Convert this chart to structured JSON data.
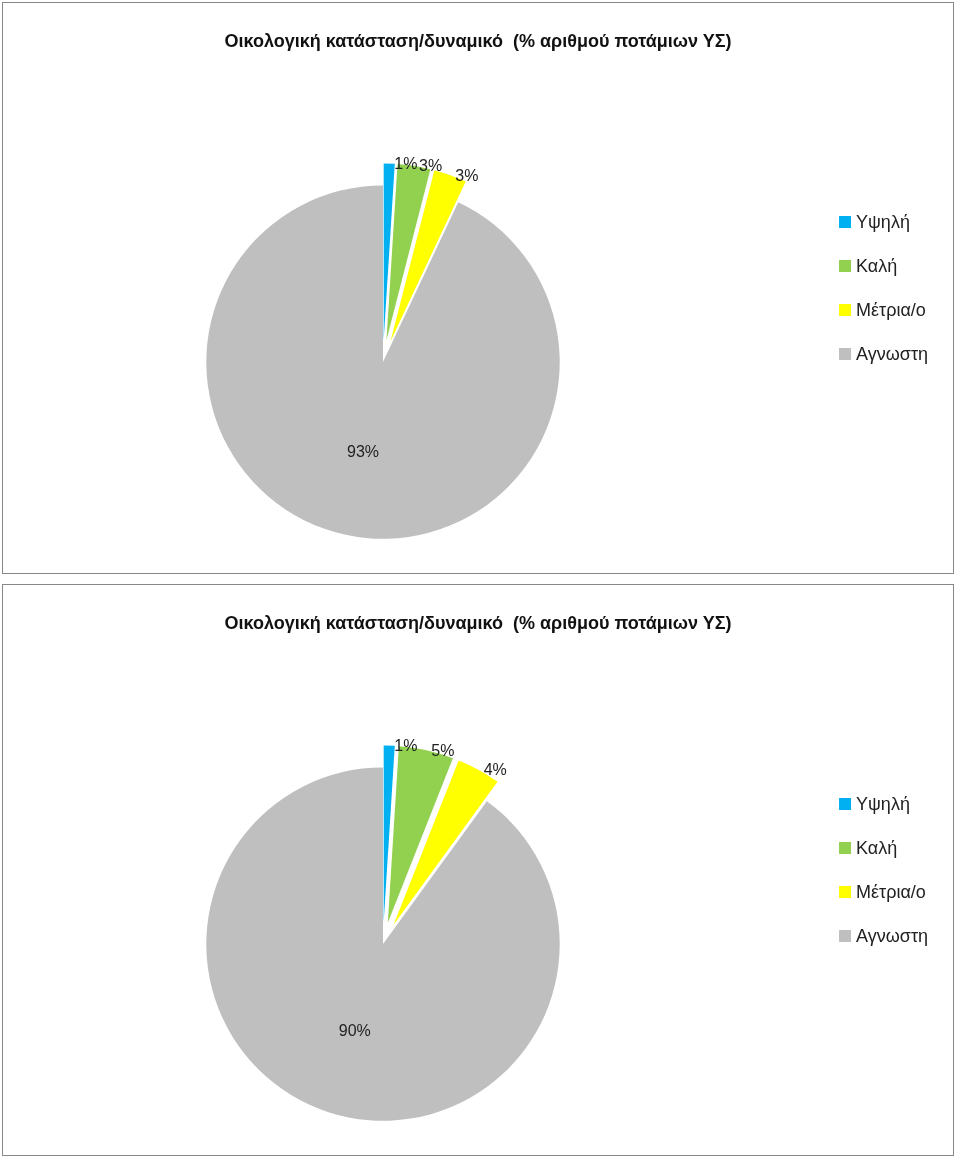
{
  "chart_data": [
    {
      "type": "pie",
      "title": "Οικολογική κατάσταση/δυναμικό  (% αριθμού ποτάμιων ΥΣ)",
      "categories": [
        "Υψηλή",
        "Καλή",
        "Μέτρια/ο",
        "Αγνωστη"
      ],
      "values": [
        1,
        3,
        3,
        93
      ],
      "colors": [
        "#00b0f0",
        "#92d050",
        "#ffff00",
        "#bfbfbf"
      ],
      "value_labels": [
        "1%",
        "3%",
        "3%",
        "93%"
      ],
      "legend": "right"
    },
    {
      "type": "pie",
      "title": "Οικολογική κατάσταση/δυναμικό  (% αριθμού ποτάμιων ΥΣ)",
      "categories": [
        "Υψηλή",
        "Καλή",
        "Μέτρια/ο",
        "Αγνωστη"
      ],
      "values": [
        1,
        5,
        4,
        90
      ],
      "colors": [
        "#00b0f0",
        "#92d050",
        "#ffff00",
        "#bfbfbf"
      ],
      "value_labels": [
        "1%",
        "5%",
        "4%",
        "90%"
      ],
      "legend": "right"
    }
  ]
}
